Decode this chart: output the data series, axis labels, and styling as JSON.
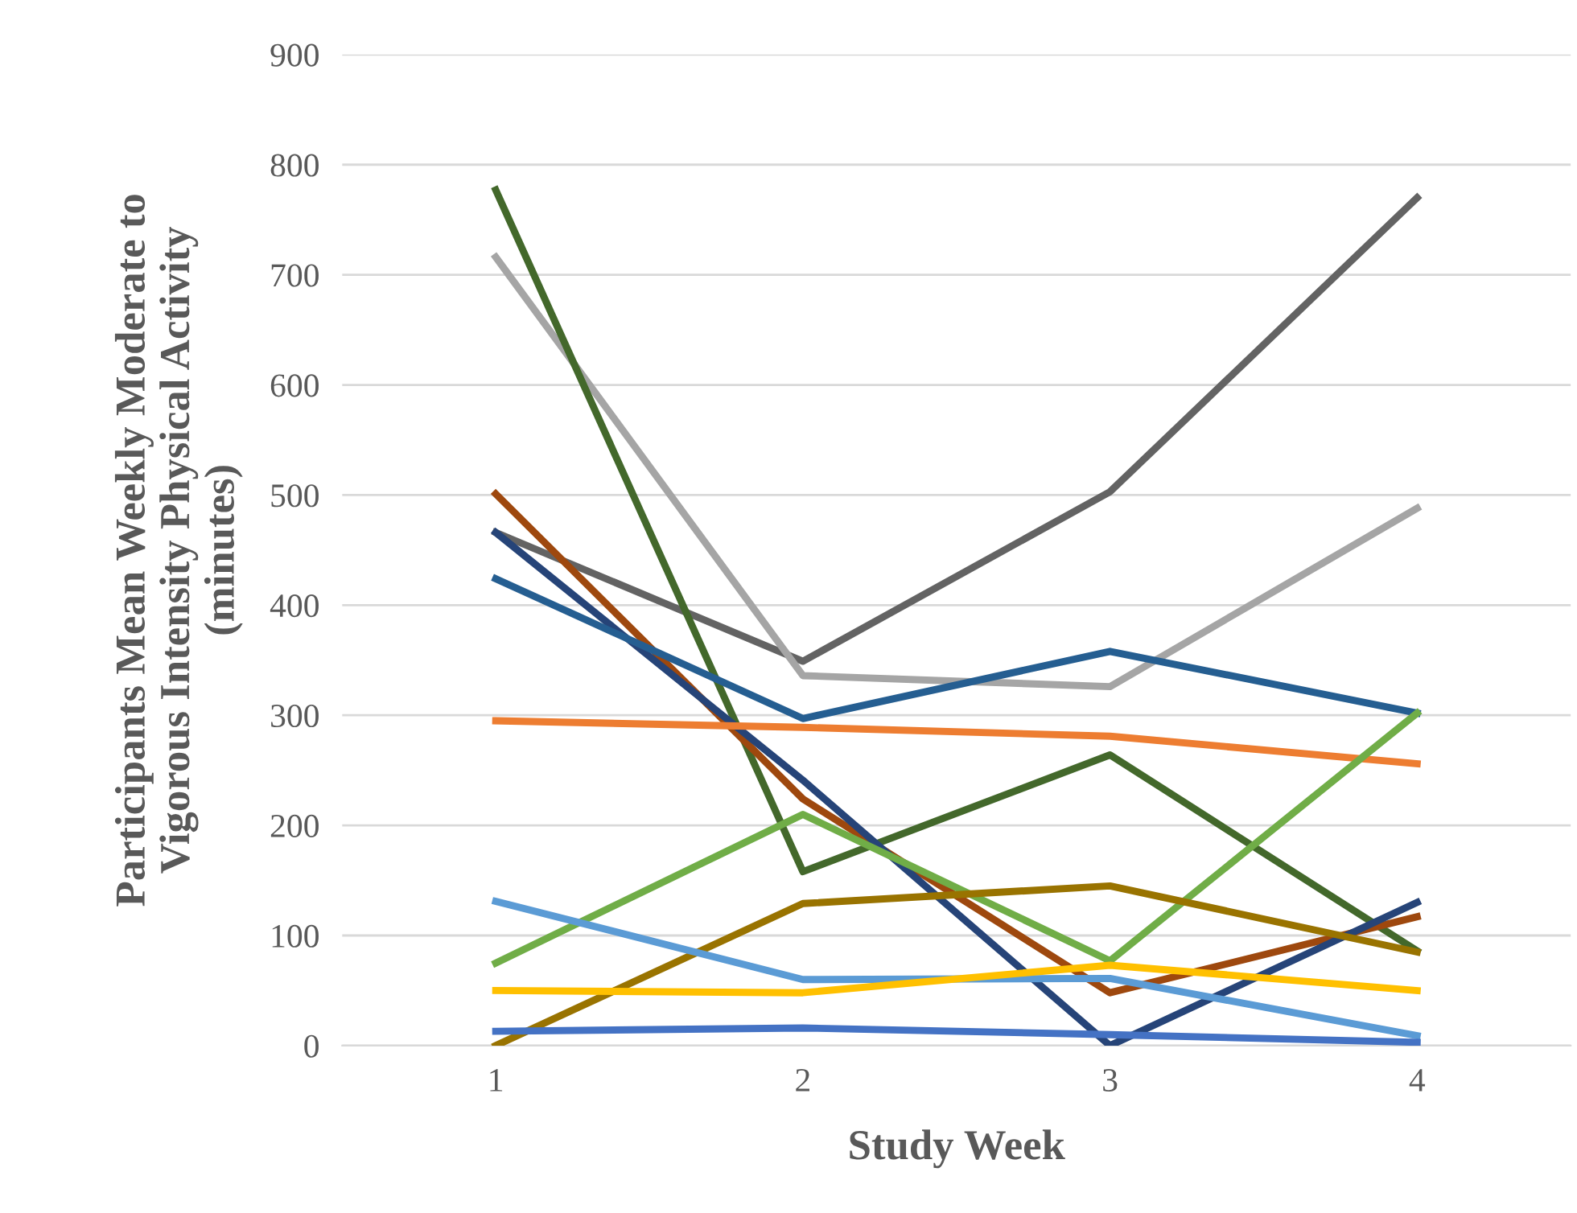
{
  "chart_data": {
    "type": "line",
    "xlabel": "Study Week",
    "ylabel": "Participants Mean Weekly Moderate to\nVigorous Intensity Physical Activity\n(minutes)",
    "categories": [
      "1",
      "2",
      "3",
      "4"
    ],
    "ylim": [
      0,
      900
    ],
    "yticks": [
      0,
      100,
      200,
      300,
      400,
      500,
      600,
      700,
      800,
      900
    ],
    "grid": "y",
    "legend": false,
    "marker": "none",
    "line_style": "solid",
    "series": [
      {
        "color": "#636363",
        "values": [
          466,
          349,
          503,
          770
        ]
      },
      {
        "color": "#a5a5a5",
        "values": [
          716,
          336,
          326,
          488
        ]
      },
      {
        "color": "#43682b",
        "values": [
          777,
          158,
          264,
          86
        ]
      },
      {
        "color": "#9e480e",
        "values": [
          501,
          224,
          48,
          117
        ]
      },
      {
        "color": "#264478",
        "values": [
          466,
          241,
          0,
          130
        ]
      },
      {
        "color": "#255e91",
        "values": [
          424,
          297,
          358,
          302
        ]
      },
      {
        "color": "#ed7d31",
        "values": [
          295,
          289,
          281,
          256
        ]
      },
      {
        "color": "#70ad47",
        "values": [
          75,
          210,
          77,
          302
        ]
      },
      {
        "color": "#997300",
        "values": [
          0,
          129,
          145,
          85
        ]
      },
      {
        "color": "#5b9bd5",
        "values": [
          131,
          60,
          61,
          9
        ]
      },
      {
        "color": "#ffc000",
        "values": [
          50,
          48,
          73,
          50
        ]
      },
      {
        "color": "#4472c4",
        "values": [
          13,
          16,
          10,
          3
        ]
      }
    ]
  }
}
